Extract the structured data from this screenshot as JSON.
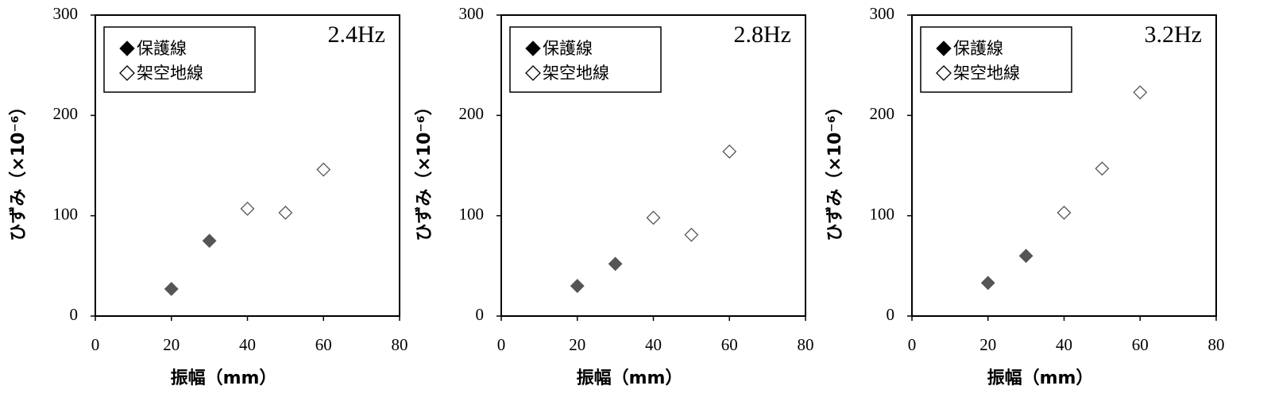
{
  "chart_data": [
    {
      "type": "scatter",
      "title": "2.4Hz",
      "xlabel": "振幅（mm）",
      "ylabel": "ひずみ（×10⁻⁶）",
      "xlim": [
        0,
        80
      ],
      "xticks": [
        0,
        20,
        40,
        60,
        80
      ],
      "ylim": [
        0,
        300
      ],
      "yticks": [
        0,
        100,
        200,
        300
      ],
      "legend": "upper left",
      "series": [
        {
          "name": "保護線",
          "color": "#555555",
          "filled": true,
          "x": [
            20,
            30
          ],
          "values": [
            27,
            75
          ]
        },
        {
          "name": "架空地線",
          "color": "#555555",
          "filled": false,
          "x": [
            40,
            50,
            60
          ],
          "values": [
            107,
            103,
            146
          ]
        }
      ]
    },
    {
      "type": "scatter",
      "title": "2.8Hz",
      "xlabel": "振幅（mm）",
      "ylabel": "ひずみ（×10⁻⁶）",
      "xlim": [
        0,
        80
      ],
      "xticks": [
        0,
        20,
        40,
        60,
        80
      ],
      "ylim": [
        0,
        300
      ],
      "yticks": [
        0,
        100,
        200,
        300
      ],
      "legend": "upper left",
      "series": [
        {
          "name": "保護線",
          "color": "#555555",
          "filled": true,
          "x": [
            20,
            30
          ],
          "values": [
            30,
            52
          ]
        },
        {
          "name": "架空地線",
          "color": "#555555",
          "filled": false,
          "x": [
            40,
            50,
            60
          ],
          "values": [
            98,
            81,
            164
          ]
        }
      ]
    },
    {
      "type": "scatter",
      "title": "3.2Hz",
      "xlabel": "振幅（mm）",
      "ylabel": "ひずみ（×10⁻⁶）",
      "xlim": [
        0,
        80
      ],
      "xticks": [
        0,
        20,
        40,
        60,
        80
      ],
      "ylim": [
        0,
        300
      ],
      "yticks": [
        0,
        100,
        200,
        300
      ],
      "legend": "upper left",
      "series": [
        {
          "name": "保護線",
          "color": "#555555",
          "filled": true,
          "x": [
            20,
            30
          ],
          "values": [
            33,
            60
          ]
        },
        {
          "name": "架空地線",
          "color": "#555555",
          "filled": false,
          "x": [
            40,
            50,
            60
          ],
          "values": [
            103,
            147,
            223
          ]
        }
      ]
    }
  ]
}
